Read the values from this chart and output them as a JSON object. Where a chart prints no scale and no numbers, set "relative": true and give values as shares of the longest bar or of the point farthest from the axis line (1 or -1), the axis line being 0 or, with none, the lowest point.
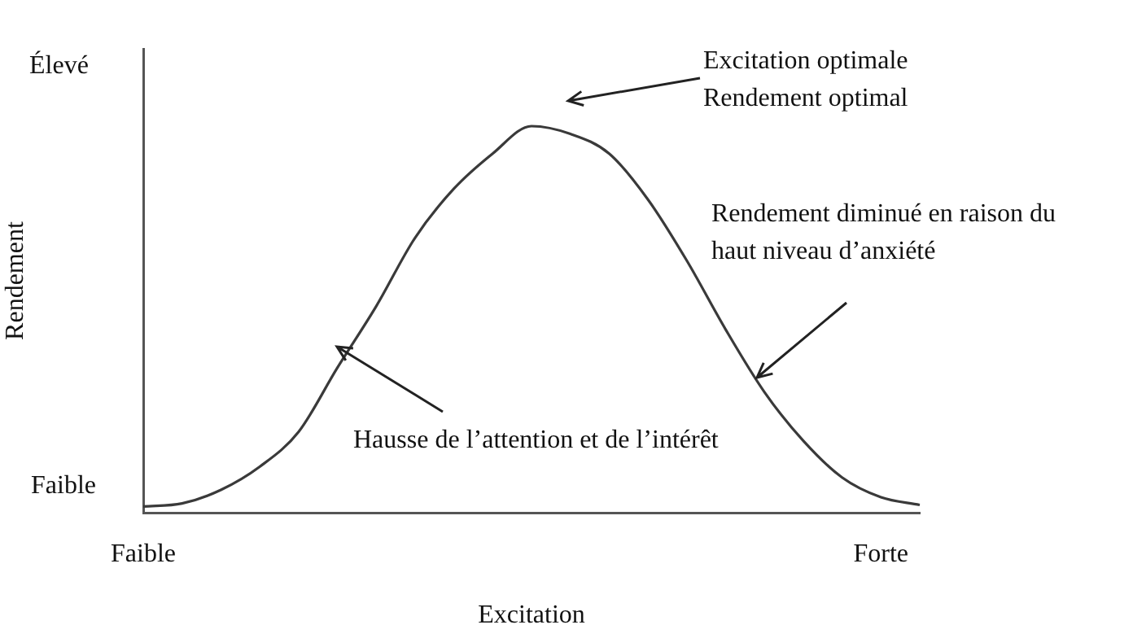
{
  "chart_data": {
    "type": "line",
    "relative": true,
    "xlabel": "Excitation",
    "ylabel": "Rendement",
    "categories": [
      "Faible",
      null,
      null,
      null,
      null,
      null,
      null,
      null,
      null,
      null,
      null,
      null,
      null,
      null,
      null,
      null,
      null,
      null,
      null,
      "Forte",
      null
    ],
    "series": [
      {
        "color": "#3a3a3a",
        "values": [
          0.016,
          0.024,
          0.059,
          0.119,
          0.209,
          0.375,
          0.534,
          0.711,
          0.838,
          0.929,
          1,
          0.98,
          0.929,
          0.81,
          0.652,
          0.474,
          0.312,
          0.186,
          0.091,
          0.04,
          0.02
        ]
      }
    ],
    "annotations": [
      "Élevé",
      "Faible",
      "Excitation optimale Rendement optimal",
      "Rendement diminué en raison du haut niveau d’anxiété",
      "Hausse de l’attention et de l’intérêt"
    ],
    "marker": "none",
    "line_style": "solid",
    "grid": false,
    "legend": false
  }
}
